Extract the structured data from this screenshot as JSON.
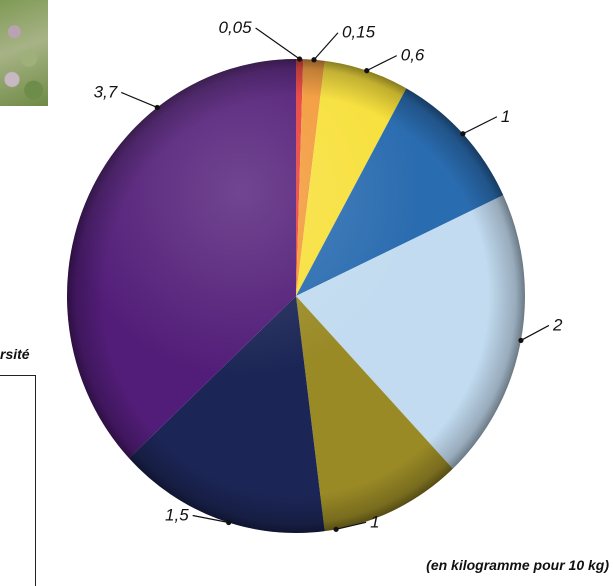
{
  "fragment_text": "rsité",
  "unit_note": "(en kilogramme  pour 10 kg)",
  "chart_data": {
    "type": "pie",
    "title": "",
    "slices": [
      {
        "label": "0,05",
        "value": 0.05,
        "color": "#e8403c"
      },
      {
        "label": "0,15",
        "value": 0.15,
        "color": "#f39a3a"
      },
      {
        "label": "0,6",
        "value": 0.6,
        "color": "#f7e03a"
      },
      {
        "label": "1",
        "value": 1,
        "color": "#2a6cb0"
      },
      {
        "label": "2",
        "value": 2,
        "color": "#c2dbf0"
      },
      {
        "label": "1",
        "value": 1,
        "color": "#9a8a26"
      },
      {
        "label": "1,5",
        "value": 1.5,
        "color": "#1c2656"
      },
      {
        "label": "3,7",
        "value": 3.7,
        "color": "#521d78"
      }
    ],
    "total": 10
  }
}
